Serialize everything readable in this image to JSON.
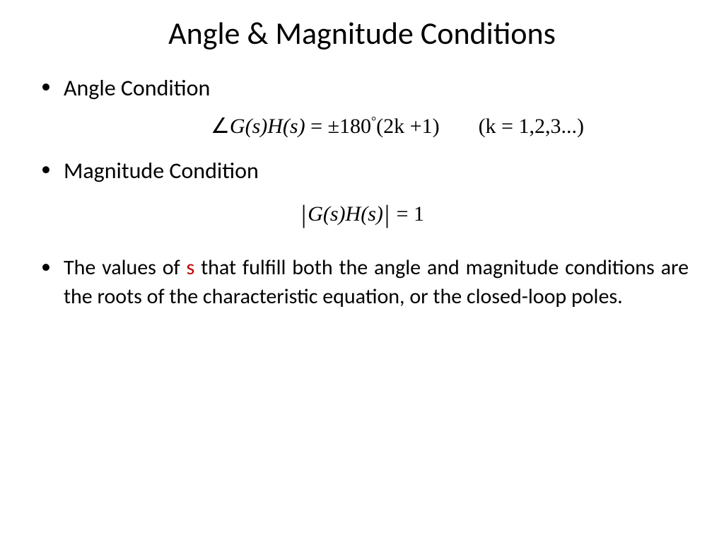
{
  "title": "Angle & Magnitude Conditions",
  "bullet1": "Angle Condition",
  "eq1_prefix_angle": "∠",
  "eq1_lhs": "G(s)H(s)",
  "eq1_eq": " = ",
  "eq1_pm": "±",
  "eq1_deg_val": "180",
  "eq1_deg_sym": "°",
  "eq1_paren": "(2k +1)",
  "eq1_kspec": "(k = 1,2,3...)",
  "bullet2": "Magnitude Condition",
  "eq2_lhs": "G(s)H(s)",
  "eq2_eq": " = ",
  "eq2_rhs": "1",
  "para_pre": "The values of ",
  "para_s": "s",
  "para_post": " that fulfill both the angle and magnitude conditions are the roots of the characteristic equation, or the closed-loop poles.",
  "colors": {
    "text": "#000000",
    "highlight": "#c00000",
    "background": "#ffffff"
  }
}
